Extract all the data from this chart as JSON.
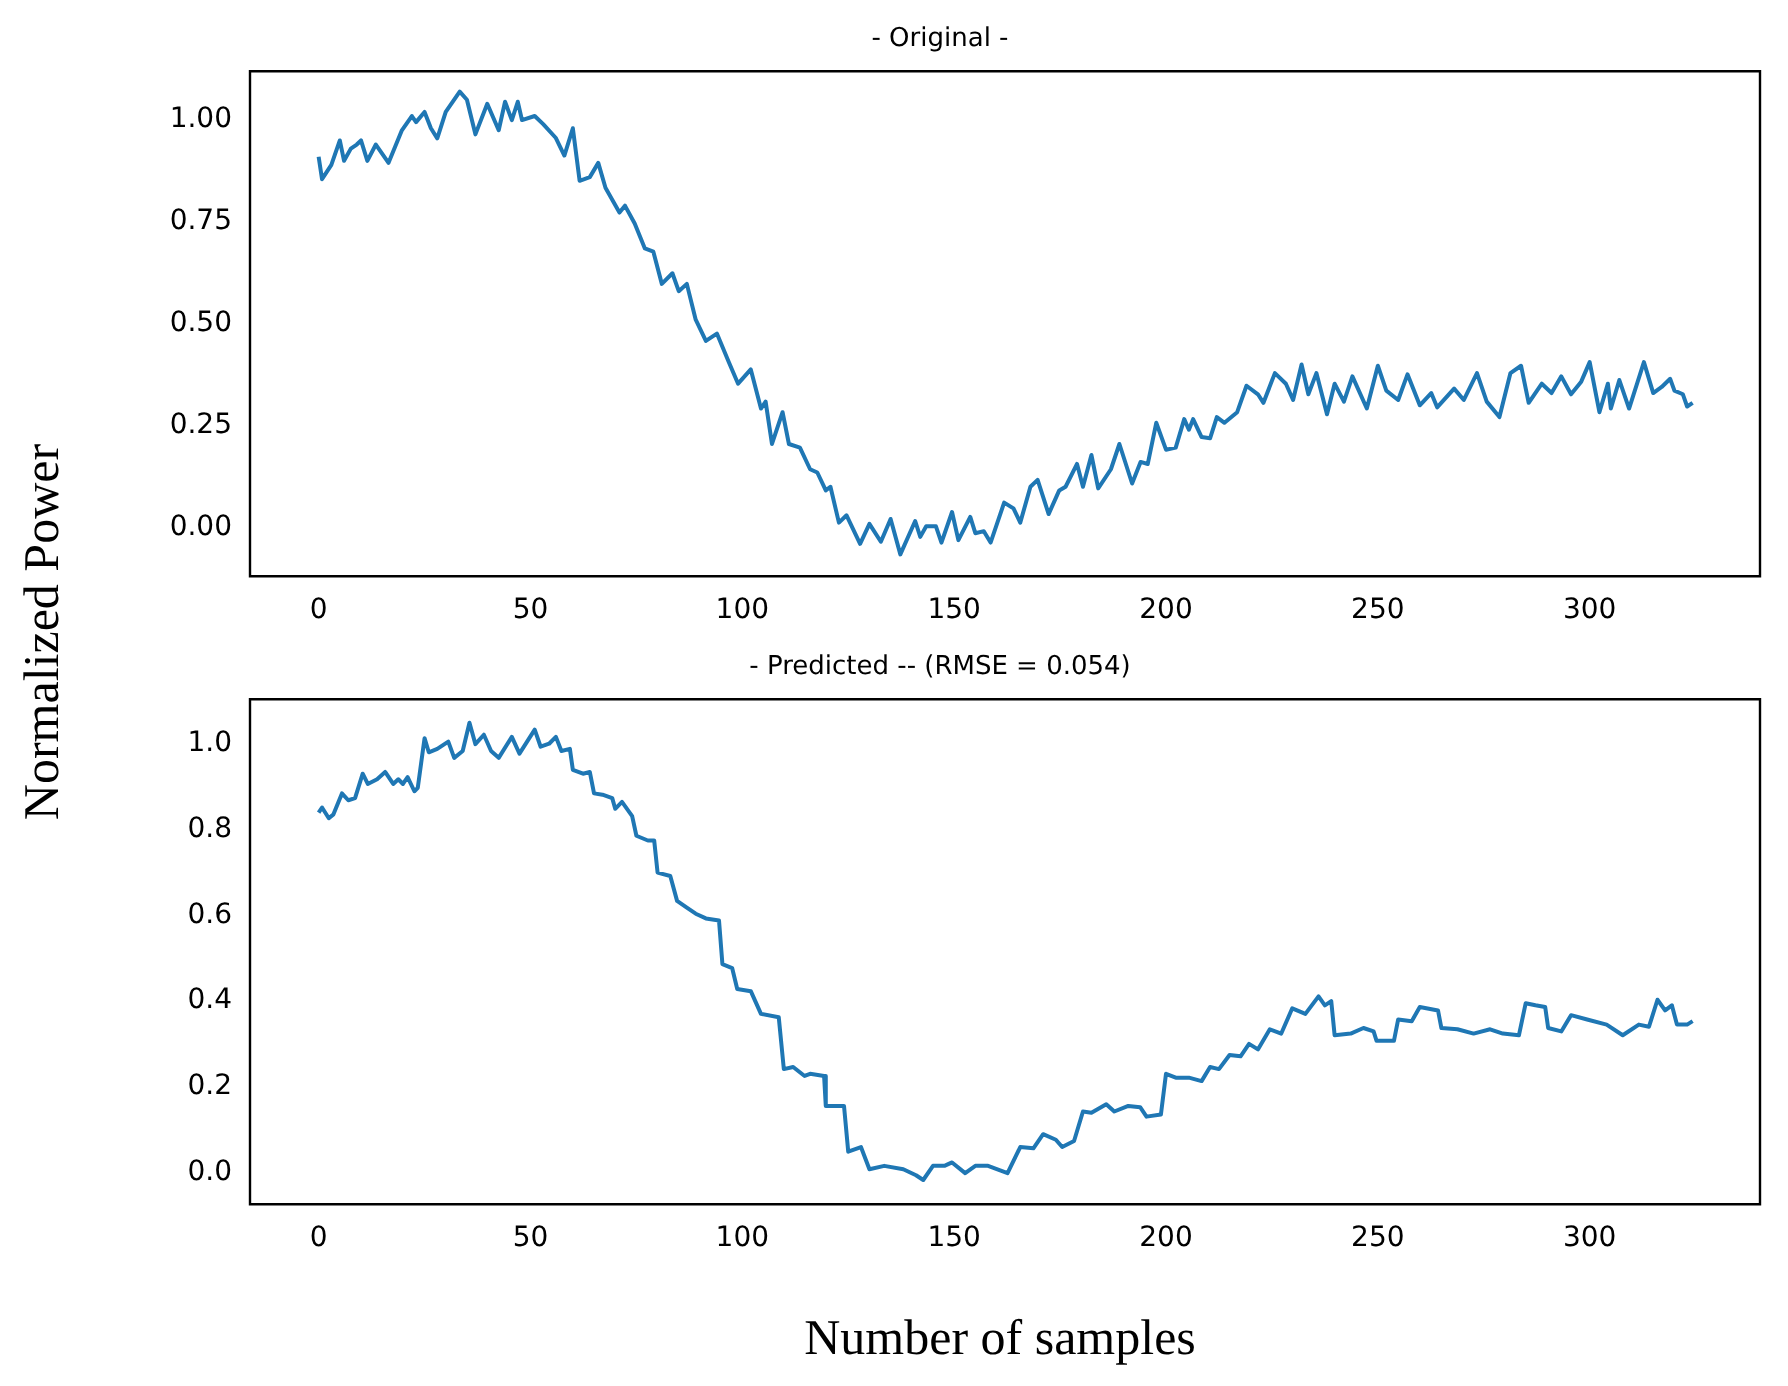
{
  "chart_data": [
    {
      "type": "line",
      "title": "- Original -",
      "ylabel": "Normalized Power",
      "xlim": [
        -16.2,
        340.2
      ],
      "xticks": [
        0,
        50,
        100,
        150,
        200,
        250,
        300
      ],
      "ylim": [
        -0.12,
        1.12
      ],
      "yticks": [
        {
          "value": 0,
          "label": "0.00"
        },
        {
          "value": 0.25,
          "label": "0.25"
        },
        {
          "value": 0.5,
          "label": "0.50"
        },
        {
          "value": 0.75,
          "label": "0.75"
        },
        {
          "value": 1,
          "label": "1.00"
        }
      ],
      "series": [
        {
          "color": "#1f77b4",
          "x": [
            0,
            0.8,
            3,
            5,
            6,
            7.6,
            9,
            10,
            11.5,
            13.5,
            16.5,
            19.6,
            22,
            23,
            25,
            26.5,
            28,
            30,
            33.3,
            35,
            37,
            39.8,
            42.5,
            44,
            45.6,
            47,
            48,
            51,
            53,
            56,
            58,
            60,
            61.6,
            64,
            66,
            67.7,
            71,
            72.3,
            74.6,
            77,
            79,
            81,
            83.5,
            85,
            86.9,
            89,
            91.4,
            94,
            96.8,
            99,
            102,
            104.4,
            105.5,
            107,
            109.5,
            111,
            113.6,
            116,
            117.7,
            119.7,
            120.8,
            122.8,
            124.6,
            127.8,
            130,
            132.7,
            135,
            137.3,
            140.8,
            142,
            143.4,
            145.7,
            147,
            149.5,
            151,
            153.8,
            155,
            157,
            158.6,
            161.8,
            164,
            165.6,
            168,
            169.7,
            172.3,
            174.8,
            176.3,
            179,
            180.4,
            182.4,
            184,
            187,
            189,
            192,
            194,
            195.7,
            197.7,
            200,
            202.3,
            204.3,
            205.4,
            206.4,
            208.4,
            210.4,
            212,
            213.8,
            216.8,
            219,
            221.7,
            223,
            225.7,
            228.3,
            230,
            232,
            233.6,
            235.5,
            238,
            239.8,
            242,
            244,
            247.4,
            250,
            252,
            254.8,
            257,
            259.9,
            262.6,
            264,
            268,
            270.3,
            273.4,
            275.7,
            278.7,
            281.3,
            283.8,
            285.6,
            288.7,
            291,
            293.3,
            295.6,
            298,
            300,
            302.3,
            304.3,
            305,
            307,
            309.3,
            312.8,
            315,
            317,
            319,
            320,
            322,
            323,
            324.3
          ],
          "values": [
            0.91,
            0.855,
            0.89,
            0.95,
            0.9,
            0.93,
            0.94,
            0.95,
            0.9,
            0.94,
            0.895,
            0.974,
            1.01,
            0.995,
            1.02,
            0.98,
            0.955,
            1.02,
            1.07,
            1.05,
            0.965,
            1.04,
            0.975,
            1.045,
            1.0,
            1.045,
            1.0,
            1.01,
            0.99,
            0.956,
            0.913,
            0.98,
            0.851,
            0.86,
            0.895,
            0.834,
            0.773,
            0.79,
            0.746,
            0.685,
            0.677,
            0.598,
            0.624,
            0.58,
            0.598,
            0.51,
            0.458,
            0.476,
            0.406,
            0.353,
            0.388,
            0.292,
            0.309,
            0.205,
            0.283,
            0.205,
            0.196,
            0.143,
            0.135,
            0.091,
            0.1,
            0.012,
            0.03,
            -0.04,
            0.009,
            -0.035,
            0.021,
            -0.066,
            0.016,
            -0.023,
            0.003,
            0.003,
            -0.037,
            0.038,
            -0.031,
            0.026,
            -0.014,
            -0.009,
            -0.037,
            0.061,
            0.047,
            0.012,
            0.1,
            0.117,
            0.033,
            0.091,
            0.1,
            0.156,
            0.1,
            0.178,
            0.096,
            0.143,
            0.205,
            0.108,
            0.161,
            0.156,
            0.257,
            0.191,
            0.196,
            0.266,
            0.24,
            0.266,
            0.222,
            0.219,
            0.271,
            0.257,
            0.283,
            0.348,
            0.327,
            0.306,
            0.379,
            0.353,
            0.313,
            0.4,
            0.327,
            0.379,
            0.278,
            0.353,
            0.309,
            0.371,
            0.292,
            0.397,
            0.336,
            0.313,
            0.376,
            0.3,
            0.33,
            0.295,
            0.341,
            0.313,
            0.379,
            0.309,
            0.271,
            0.379,
            0.397,
            0.306,
            0.353,
            0.33,
            0.371,
            0.327,
            0.358,
            0.406,
            0.283,
            0.353,
            0.292,
            0.362,
            0.292,
            0.406,
            0.33,
            0.345,
            0.365,
            0.336,
            0.327,
            0.297,
            0.306
          ]
        }
      ]
    },
    {
      "type": "line",
      "title": "- Predicted -- (RMSE = 0.054)",
      "xlabel": "Number of samples",
      "xlim": [
        -16.2,
        340.2
      ],
      "xticks": [
        0,
        50,
        100,
        150,
        200,
        250,
        300
      ],
      "ylim": [
        -0.075,
        1.105
      ],
      "yticks": [
        {
          "value": 0,
          "label": "0.0"
        },
        {
          "value": 0.2,
          "label": "0.2"
        },
        {
          "value": 0.4,
          "label": "0.4"
        },
        {
          "value": 0.6,
          "label": "0.6"
        },
        {
          "value": 0.8,
          "label": "0.8"
        },
        {
          "value": 1,
          "label": "1.0"
        }
      ],
      "series": [
        {
          "color": "#1f77b4",
          "x": [
            0,
            0.8,
            2.4,
            3.5,
            5.5,
            7,
            8.6,
            10.4,
            11.6,
            13.8,
            15.7,
            17.6,
            18.8,
            19.9,
            21,
            22.6,
            23.4,
            25,
            26,
            28,
            30.6,
            32,
            34,
            35.6,
            37,
            39,
            40.7,
            42.5,
            45.6,
            47.4,
            51,
            52.4,
            54.4,
            56,
            57.3,
            59.3,
            60,
            62.4,
            64,
            65,
            67,
            69.3,
            70,
            71.6,
            74,
            75,
            77.7,
            79.2,
            80,
            83,
            84.6,
            86.9,
            89,
            91.4,
            94.5,
            95.3,
            97.6,
            98.8,
            102,
            104.4,
            108.6,
            109.8,
            112,
            114.7,
            116,
            119.3,
            119.7,
            124,
            125,
            128,
            130,
            133.5,
            138,
            141,
            142.7,
            145,
            147.7,
            149.5,
            152.6,
            155,
            158,
            162.6,
            165.6,
            168.7,
            171,
            174,
            175.5,
            178.3,
            180.4,
            182.4,
            185.9,
            187.8,
            191.1,
            193.9,
            195.4,
            198.8,
            200,
            202.3,
            205.4,
            208.4,
            210.4,
            212.5,
            215,
            217.6,
            219.6,
            221.7,
            224.5,
            227.2,
            229.8,
            232.9,
            236,
            237.5,
            239,
            239.8,
            243.6,
            246.6,
            249,
            249.7,
            253.8,
            254.8,
            258,
            259.9,
            264.2,
            265,
            268.8,
            272.6,
            276.5,
            279.5,
            283.3,
            284.9,
            287.2,
            289.5,
            290.2,
            293.3,
            295.6,
            299.4,
            304,
            307.8,
            311.6,
            314,
            316,
            317.8,
            319.4,
            320.6,
            323,
            324.3
          ],
          "values": [
            0.84,
            0.852,
            0.827,
            0.836,
            0.885,
            0.869,
            0.874,
            0.931,
            0.907,
            0.918,
            0.935,
            0.907,
            0.918,
            0.907,
            0.923,
            0.89,
            0.898,
            1.014,
            0.981,
            0.989,
            1.006,
            0.968,
            0.984,
            1.05,
            1.0,
            1.022,
            0.984,
            0.968,
            1.017,
            0.978,
            1.034,
            0.994,
            1.001,
            1.017,
            0.984,
            0.989,
            0.94,
            0.931,
            0.935,
            0.885,
            0.882,
            0.874,
            0.849,
            0.865,
            0.832,
            0.786,
            0.775,
            0.775,
            0.7,
            0.692,
            0.634,
            0.618,
            0.604,
            0.593,
            0.588,
            0.486,
            0.477,
            0.428,
            0.423,
            0.37,
            0.362,
            0.241,
            0.246,
            0.225,
            0.23,
            0.225,
            0.155,
            0.155,
            0.048,
            0.059,
            0.007,
            0.015,
            0.007,
            -0.007,
            -0.018,
            0.015,
            0.015,
            0.023,
            -0.002,
            0.015,
            0.015,
            -0.002,
            0.059,
            0.056,
            0.089,
            0.076,
            0.059,
            0.073,
            0.142,
            0.139,
            0.159,
            0.142,
            0.155,
            0.152,
            0.13,
            0.135,
            0.23,
            0.221,
            0.221,
            0.213,
            0.246,
            0.241,
            0.274,
            0.271,
            0.3,
            0.287,
            0.334,
            0.324,
            0.383,
            0.37,
            0.411,
            0.39,
            0.4,
            0.32,
            0.324,
            0.337,
            0.329,
            0.307,
            0.307,
            0.357,
            0.353,
            0.386,
            0.378,
            0.337,
            0.334,
            0.324,
            0.334,
            0.324,
            0.32,
            0.395,
            0.39,
            0.386,
            0.337,
            0.329,
            0.367,
            0.357,
            0.345,
            0.32,
            0.345,
            0.34,
            0.403,
            0.378,
            0.39,
            0.345,
            0.345,
            0.353
          ]
        }
      ]
    }
  ]
}
